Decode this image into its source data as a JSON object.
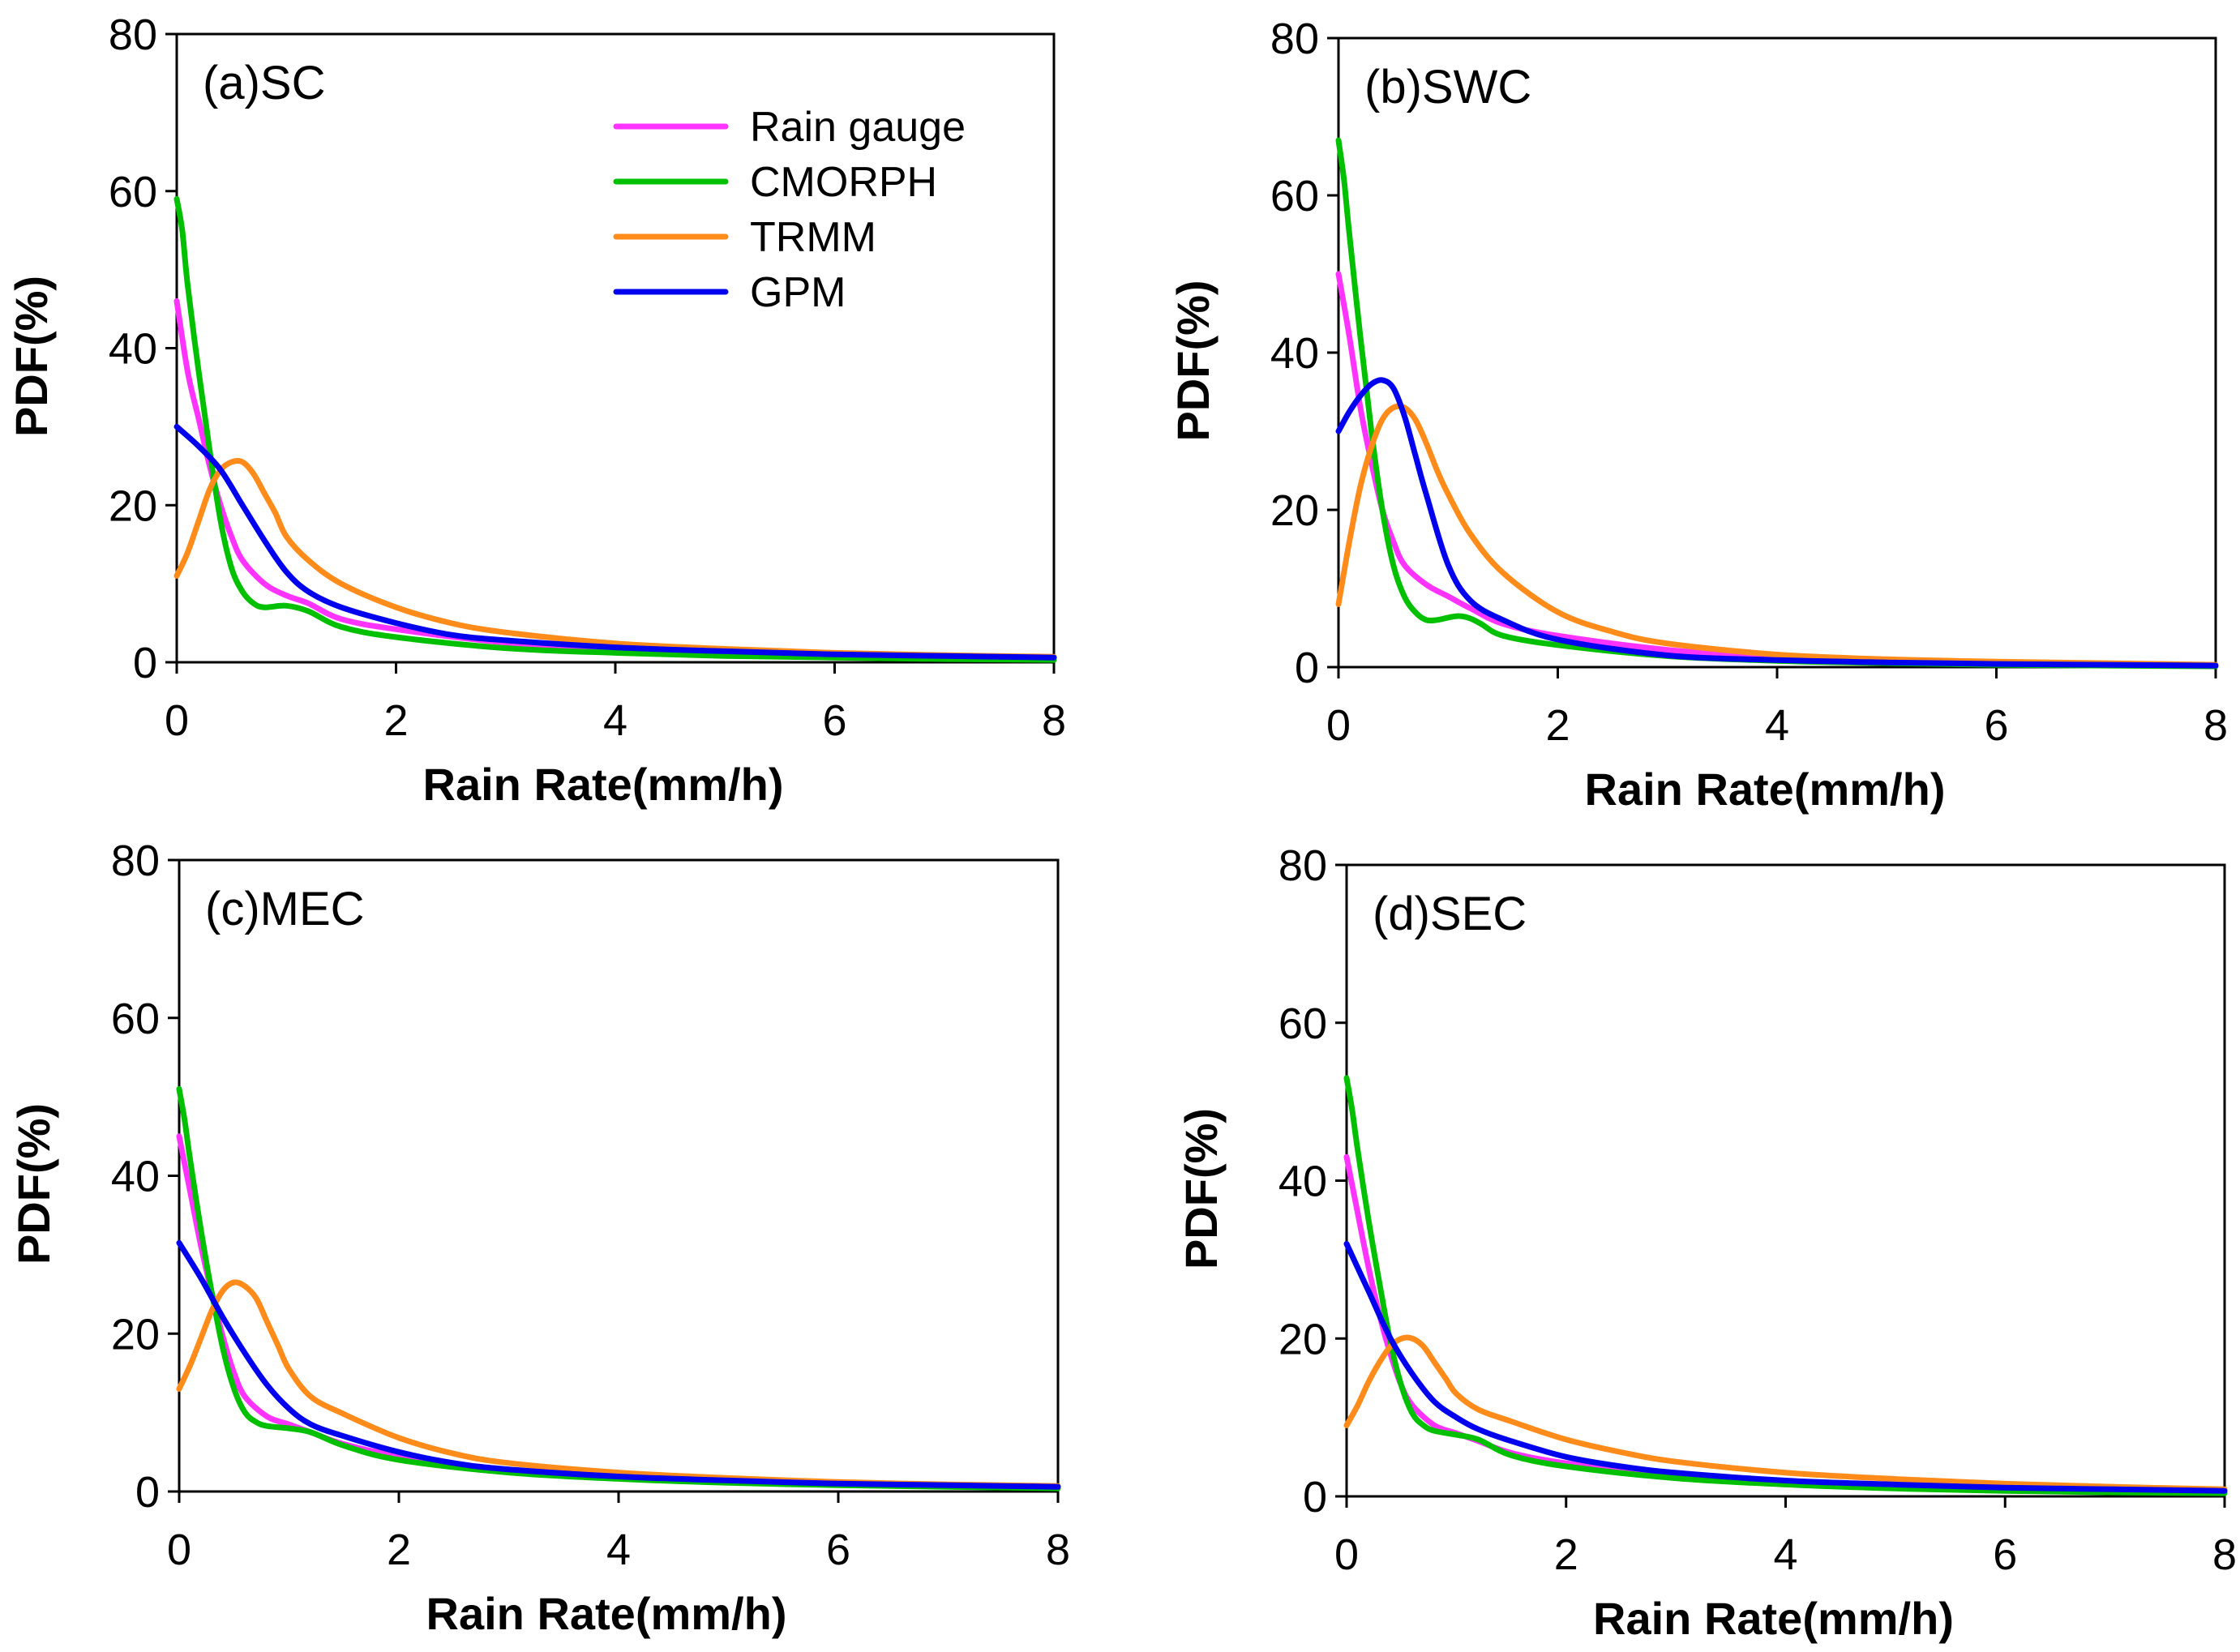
{
  "chart_data": [
    {
      "type": "line",
      "panel_label": "(a)SC",
      "xlabel": "Rain Rate(mm/h)",
      "ylabel": "PDF(%)",
      "xlim": [
        0,
        8
      ],
      "ylim": [
        0,
        80
      ],
      "xticks": [
        "0",
        "2",
        "4",
        "6",
        "8"
      ],
      "yticks": [
        "0",
        "20",
        "40",
        "60",
        "80"
      ],
      "legend": "top-right",
      "series": [
        {
          "name": "Rain gauge",
          "color": "#ff33ff",
          "x": [
            0,
            0.1,
            0.2,
            0.3,
            0.4,
            0.5,
            0.6,
            0.8,
            1.0,
            1.2,
            1.5,
            2,
            3,
            4,
            5,
            6,
            7,
            8
          ],
          "y": [
            46,
            37,
            31,
            25,
            20,
            16,
            13,
            10,
            8.5,
            7.5,
            5.5,
            4.2,
            2.5,
            1.6,
            1.2,
            0.9,
            0.7,
            0.5
          ]
        },
        {
          "name": "CMORPH",
          "color": "#00c000",
          "x": [
            0,
            0.05,
            0.1,
            0.2,
            0.3,
            0.4,
            0.5,
            0.6,
            0.7,
            0.8,
            1.0,
            1.2,
            1.5,
            2,
            3,
            4,
            5,
            6,
            7,
            8
          ],
          "y": [
            59,
            55,
            48,
            37,
            27,
            18,
            12,
            9,
            7.5,
            7,
            7.2,
            6.5,
            4.5,
            3.2,
            1.8,
            1.2,
            0.8,
            0.6,
            0.4,
            0.3
          ]
        },
        {
          "name": "TRMM",
          "color": "#ff8c1a",
          "x": [
            0,
            0.1,
            0.2,
            0.3,
            0.4,
            0.5,
            0.6,
            0.7,
            0.8,
            0.9,
            1.0,
            1.2,
            1.5,
            2,
            2.5,
            3,
            4,
            5,
            6,
            7,
            8
          ],
          "y": [
            11,
            14,
            18,
            22,
            24.5,
            25.5,
            25.5,
            24,
            21.5,
            19,
            16,
            13,
            10,
            7,
            5,
            3.8,
            2.4,
            1.7,
            1.2,
            0.9,
            0.7
          ]
        },
        {
          "name": "GPM",
          "color": "#0000ee",
          "x": [
            0,
            0.2,
            0.4,
            0.6,
            0.8,
            1.0,
            1.2,
            1.5,
            2,
            2.5,
            3,
            4,
            5,
            6,
            7,
            8
          ],
          "y": [
            30,
            27.5,
            24.5,
            20,
            15.5,
            11.5,
            9,
            7,
            5,
            3.5,
            2.8,
            1.9,
            1.4,
            1.0,
            0.8,
            0.6
          ]
        }
      ]
    },
    {
      "type": "line",
      "panel_label": "(b)SWC",
      "xlabel": "Rain Rate(mm/h)",
      "ylabel": "PDF(%)",
      "xlim": [
        0,
        8
      ],
      "ylim": [
        0,
        80
      ],
      "xticks": [
        "0",
        "2",
        "4",
        "6",
        "8"
      ],
      "yticks": [
        "0",
        "20",
        "40",
        "60",
        "80"
      ],
      "series": [
        {
          "name": "Rain gauge",
          "color": "#ff33ff",
          "x": [
            0,
            0.1,
            0.2,
            0.3,
            0.4,
            0.5,
            0.6,
            0.8,
            1.0,
            1.2,
            1.5,
            2,
            3,
            4,
            5,
            6,
            7,
            8
          ],
          "y": [
            50,
            42,
            33,
            26,
            20,
            16,
            13,
            10.5,
            9,
            7.5,
            5.5,
            4,
            2.2,
            1.2,
            0.7,
            0.5,
            0.3,
            0.2
          ]
        },
        {
          "name": "CMORPH",
          "color": "#00c000",
          "x": [
            0,
            0.05,
            0.1,
            0.2,
            0.3,
            0.4,
            0.5,
            0.6,
            0.7,
            0.8,
            0.9,
            1.0,
            1.1,
            1.2,
            1.3,
            1.5,
            2,
            3,
            4,
            5,
            6,
            7,
            8
          ],
          "y": [
            67,
            62,
            55,
            42,
            30,
            20,
            13,
            9,
            7,
            6,
            6,
            6.3,
            6.5,
            6.2,
            5.5,
            4,
            2.8,
            1.4,
            0.8,
            0.5,
            0.3,
            0.2,
            0.1
          ]
        },
        {
          "name": "TRMM",
          "color": "#ff8c1a",
          "x": [
            0,
            0.1,
            0.2,
            0.3,
            0.4,
            0.5,
            0.6,
            0.7,
            0.8,
            0.9,
            1.0,
            1.2,
            1.5,
            2,
            2.5,
            3,
            4,
            5,
            6,
            7,
            8
          ],
          "y": [
            8,
            16,
            23,
            28,
            31.5,
            33,
            33,
            31.5,
            28.5,
            25,
            22,
            17,
            12,
            7,
            4.5,
            3,
            1.6,
            1.0,
            0.7,
            0.5,
            0.3
          ]
        },
        {
          "name": "GPM",
          "color": "#0000ee",
          "x": [
            0,
            0.1,
            0.2,
            0.3,
            0.4,
            0.5,
            0.6,
            0.7,
            0.8,
            1.0,
            1.2,
            1.5,
            2,
            3,
            4,
            5,
            6,
            7,
            8
          ],
          "y": [
            30,
            32.5,
            34.5,
            36,
            36.5,
            35.5,
            32,
            27,
            22,
            13,
            8.5,
            6,
            3.5,
            1.5,
            0.9,
            0.6,
            0.4,
            0.3,
            0.2
          ]
        }
      ]
    },
    {
      "type": "line",
      "panel_label": "(c)MEC",
      "xlabel": "Rain Rate(mm/h)",
      "ylabel": "PDF(%)",
      "xlim": [
        0,
        8
      ],
      "ylim": [
        0,
        80
      ],
      "xticks": [
        "0",
        "2",
        "4",
        "6",
        "8"
      ],
      "yticks": [
        "0",
        "20",
        "40",
        "60",
        "80"
      ],
      "series": [
        {
          "name": "Rain gauge",
          "color": "#ff33ff",
          "x": [
            0,
            0.1,
            0.2,
            0.3,
            0.4,
            0.5,
            0.6,
            0.8,
            1.0,
            1.2,
            1.5,
            2,
            3,
            4,
            5,
            6,
            7,
            8
          ],
          "y": [
            45,
            38,
            31,
            25,
            19.5,
            15,
            12,
            9.5,
            8.5,
            7.5,
            6,
            4.5,
            2.6,
            1.7,
            1.2,
            0.9,
            0.7,
            0.5
          ]
        },
        {
          "name": "CMORPH",
          "color": "#00c000",
          "x": [
            0,
            0.05,
            0.1,
            0.2,
            0.3,
            0.4,
            0.5,
            0.6,
            0.7,
            0.8,
            1.0,
            1.2,
            1.5,
            2,
            3,
            4,
            5,
            6,
            7,
            8
          ],
          "y": [
            51,
            47,
            42,
            33,
            25,
            18,
            13,
            10,
            8.8,
            8.3,
            8,
            7.5,
            5.8,
            4,
            2.4,
            1.6,
            1.1,
            0.8,
            0.6,
            0.4
          ]
        },
        {
          "name": "TRMM",
          "color": "#ff8c1a",
          "x": [
            0,
            0.1,
            0.2,
            0.3,
            0.4,
            0.5,
            0.6,
            0.7,
            0.8,
            0.9,
            1.0,
            1.2,
            1.5,
            2,
            2.5,
            3,
            4,
            5,
            6,
            7,
            8
          ],
          "y": [
            13,
            16,
            19.5,
            23,
            25.5,
            26.5,
            26,
            24.5,
            21.5,
            18.5,
            15.5,
            12,
            9.8,
            6.8,
            4.8,
            3.6,
            2.4,
            1.7,
            1.2,
            0.9,
            0.7
          ]
        },
        {
          "name": "GPM",
          "color": "#0000ee",
          "x": [
            0,
            0.2,
            0.4,
            0.6,
            0.8,
            1.0,
            1.2,
            1.5,
            2,
            2.5,
            3,
            4,
            5,
            6,
            7,
            8
          ],
          "y": [
            31.5,
            27,
            22,
            17.5,
            13.5,
            10.5,
            8.5,
            7,
            5,
            3.6,
            2.8,
            1.9,
            1.4,
            1.0,
            0.8,
            0.6
          ]
        }
      ]
    },
    {
      "type": "line",
      "panel_label": "(d)SEC",
      "xlabel": "Rain Rate(mm/h)",
      "ylabel": "PDF(%)",
      "xlim": [
        0,
        8
      ],
      "ylim": [
        0,
        80
      ],
      "xticks": [
        "0",
        "2",
        "4",
        "6",
        "8"
      ],
      "yticks": [
        "0",
        "20",
        "40",
        "60",
        "80"
      ],
      "series": [
        {
          "name": "Rain gauge",
          "color": "#ff33ff",
          "x": [
            0,
            0.1,
            0.2,
            0.3,
            0.4,
            0.5,
            0.6,
            0.8,
            1.0,
            1.2,
            1.5,
            2,
            3,
            4,
            5,
            6,
            7,
            8
          ],
          "y": [
            43,
            36,
            29,
            23,
            18,
            14,
            11.5,
            9,
            8,
            7,
            5.5,
            4.2,
            2.6,
            1.7,
            1.2,
            0.9,
            0.7,
            0.5
          ]
        },
        {
          "name": "CMORPH",
          "color": "#00c000",
          "x": [
            0,
            0.05,
            0.1,
            0.2,
            0.3,
            0.4,
            0.5,
            0.6,
            0.7,
            0.8,
            1.0,
            1.2,
            1.5,
            2,
            3,
            4,
            5,
            6,
            7,
            8
          ],
          "y": [
            53,
            49,
            44,
            35,
            27,
            19.5,
            14,
            10.5,
            9,
            8.3,
            7.8,
            7.2,
            5.2,
            3.8,
            2.3,
            1.5,
            1.0,
            0.7,
            0.5,
            0.4
          ]
        },
        {
          "name": "TRMM",
          "color": "#ff8c1a",
          "x": [
            0,
            0.1,
            0.2,
            0.3,
            0.4,
            0.5,
            0.6,
            0.7,
            0.8,
            0.9,
            1.0,
            1.2,
            1.5,
            2,
            2.5,
            3,
            4,
            5,
            6,
            7,
            8
          ],
          "y": [
            9,
            11.5,
            14.5,
            17,
            19,
            20,
            20,
            19,
            17,
            15,
            13,
            11,
            9.5,
            7.2,
            5.6,
            4.4,
            3,
            2.2,
            1.6,
            1.2,
            0.9
          ]
        },
        {
          "name": "GPM",
          "color": "#0000ee",
          "x": [
            0,
            0.2,
            0.4,
            0.6,
            0.8,
            1.0,
            1.2,
            1.5,
            2,
            2.5,
            3,
            4,
            5,
            6,
            7,
            8
          ],
          "y": [
            32,
            26,
            20,
            15.5,
            12,
            10,
            8.5,
            7,
            5,
            3.8,
            3,
            2,
            1.5,
            1.1,
            0.9,
            0.7
          ]
        }
      ]
    }
  ]
}
